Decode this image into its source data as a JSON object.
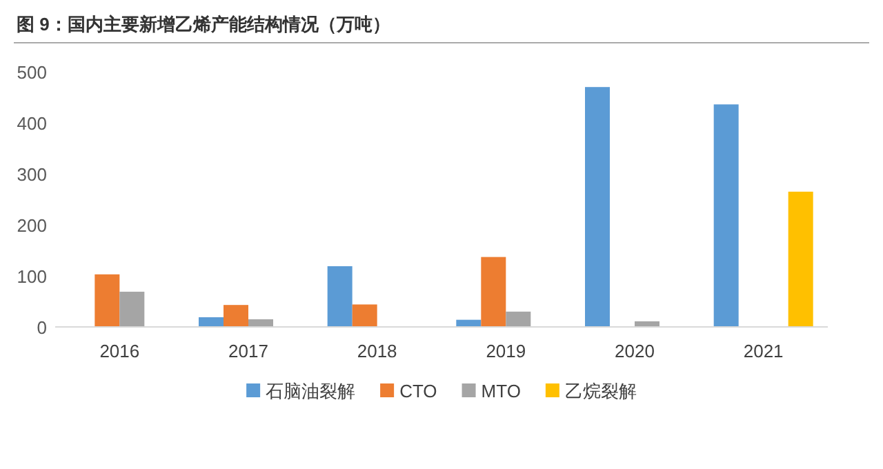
{
  "chart_data": {
    "type": "bar",
    "title": "图 9：国内主要新增乙烯产能结构情况（万吨）",
    "categories": [
      "2016",
      "2017",
      "2018",
      "2019",
      "2020",
      "2021"
    ],
    "series": [
      {
        "name": "石脑油裂解",
        "color": "#5b9bd5",
        "values": [
          null,
          19,
          119,
          14,
          470,
          436
        ]
      },
      {
        "name": "CTO",
        "color": "#ed7d31",
        "values": [
          103,
          43,
          44,
          137,
          null,
          null
        ]
      },
      {
        "name": "MTO",
        "color": "#a5a5a5",
        "values": [
          69,
          15,
          null,
          30,
          11,
          null
        ]
      },
      {
        "name": "乙烷裂解",
        "color": "#ffc000",
        "values": [
          null,
          null,
          null,
          null,
          null,
          265
        ]
      }
    ],
    "ylim": [
      0,
      500
    ],
    "yticks": [
      0,
      100,
      200,
      300,
      400,
      500
    ],
    "grid": false,
    "legend": "bottom"
  }
}
